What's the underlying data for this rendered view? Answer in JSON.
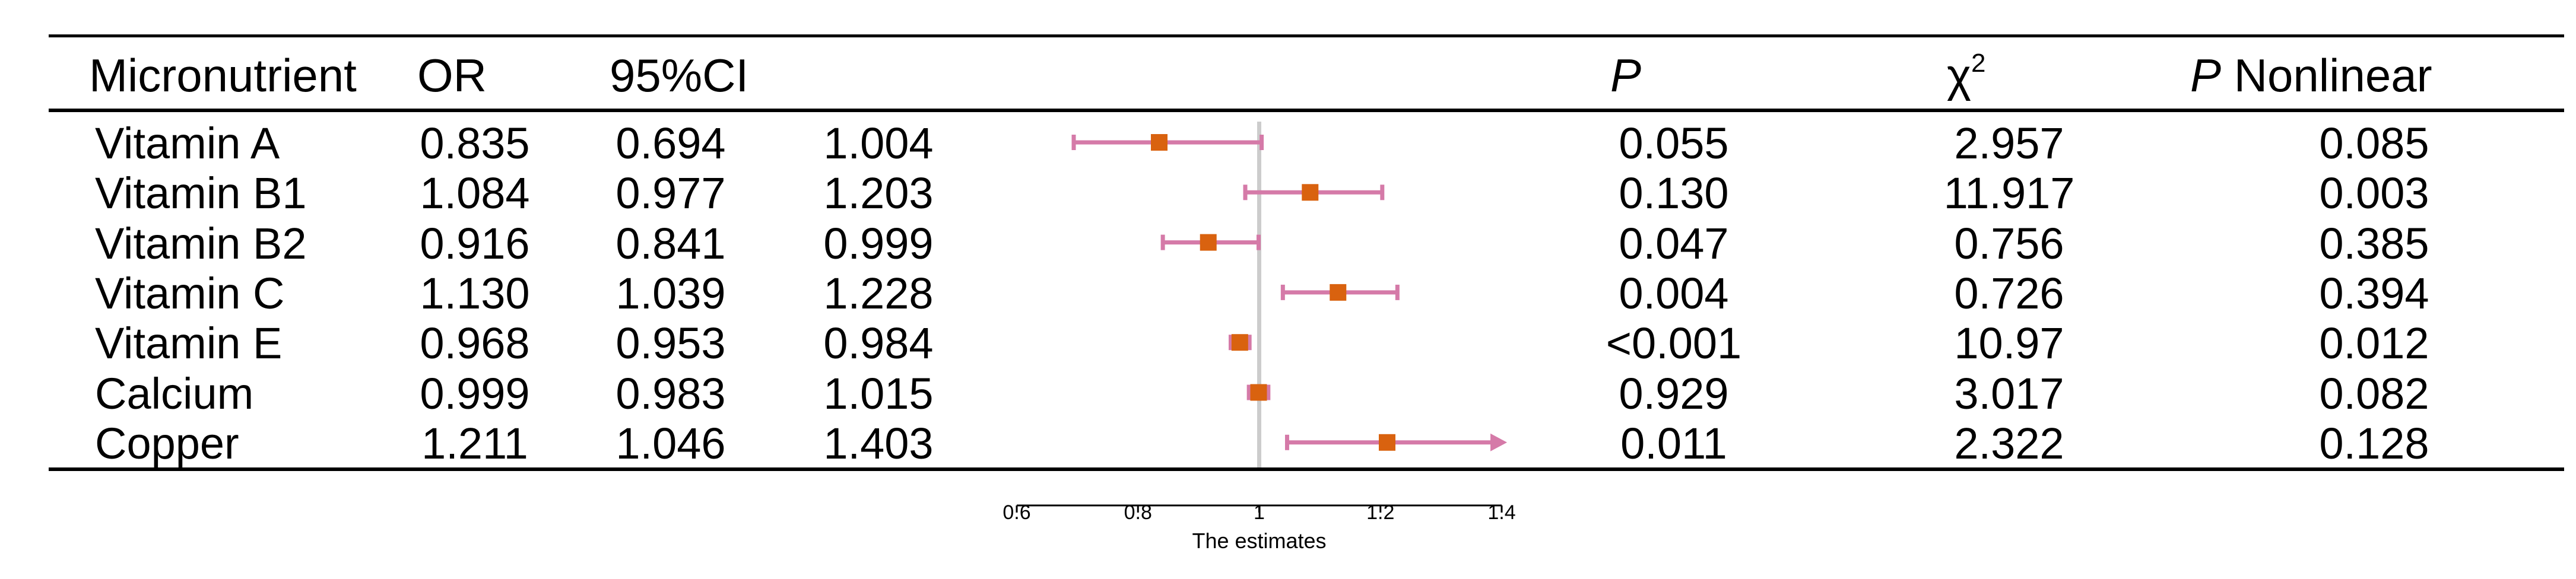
{
  "chart_data": {
    "type": "forest",
    "xlabel": "The estimates",
    "xlim": [
      0.6,
      1.4
    ],
    "ticks": [
      0.6,
      0.8,
      1,
      1.2,
      1.4
    ],
    "tick_labels": [
      "0.6",
      "0.8",
      "1",
      "1.2",
      "1.4"
    ],
    "reference_line": 1,
    "headers": {
      "micronutrient": "Micronutrient",
      "or": "OR",
      "ci": "95%CI",
      "p_italic": "P",
      "chi": "χ",
      "chi_sup": "2",
      "pnl_italic": "P",
      "pnl_rest": " Nonlinear"
    },
    "rows": [
      {
        "name": "Vitamin A",
        "or": "0.835",
        "lo": "0.694",
        "hi": "1.004",
        "p": "0.055",
        "chi2": "2.957",
        "pnl": "0.085",
        "or_v": 0.835,
        "lo_v": 0.694,
        "hi_v": 1.004,
        "arrow": false
      },
      {
        "name": "Vitamin B1",
        "or": "1.084",
        "lo": "0.977",
        "hi": "1.203",
        "p": "0.130",
        "chi2": "11.917",
        "pnl": "0.003",
        "or_v": 1.084,
        "lo_v": 0.977,
        "hi_v": 1.203,
        "arrow": false
      },
      {
        "name": "Vitamin B2",
        "or": "0.916",
        "lo": "0.841",
        "hi": "0.999",
        "p": "0.047",
        "chi2": "0.756",
        "pnl": "0.385",
        "or_v": 0.916,
        "lo_v": 0.841,
        "hi_v": 0.999,
        "arrow": false
      },
      {
        "name": "Vitamin C",
        "or": "1.130",
        "lo": "1.039",
        "hi": "1.228",
        "p": "0.004",
        "chi2": "0.726",
        "pnl": "0.394",
        "or_v": 1.13,
        "lo_v": 1.039,
        "hi_v": 1.228,
        "arrow": false
      },
      {
        "name": "Vitamin E",
        "or": "0.968",
        "lo": "0.953",
        "hi": "0.984",
        "p": "<0.001",
        "chi2": "10.97",
        "pnl": "0.012",
        "or_v": 0.968,
        "lo_v": 0.953,
        "hi_v": 0.984,
        "arrow": false
      },
      {
        "name": "Calcium",
        "or": "0.999",
        "lo": "0.983",
        "hi": "1.015",
        "p": "0.929",
        "chi2": "3.017",
        "pnl": "0.082",
        "or_v": 0.999,
        "lo_v": 0.983,
        "hi_v": 1.015,
        "arrow": false
      },
      {
        "name": "Copper",
        "or": "1.211",
        "lo": "1.046",
        "hi": "1.403",
        "p": "0.011",
        "chi2": "2.322",
        "pnl": "0.128",
        "or_v": 1.211,
        "lo_v": 1.046,
        "hi_v": 1.403,
        "arrow": true
      }
    ],
    "colors": {
      "ci_line": "#d57aa8",
      "point": "#d9620f",
      "reference": "#cccccc",
      "axis": "#000000"
    }
  }
}
